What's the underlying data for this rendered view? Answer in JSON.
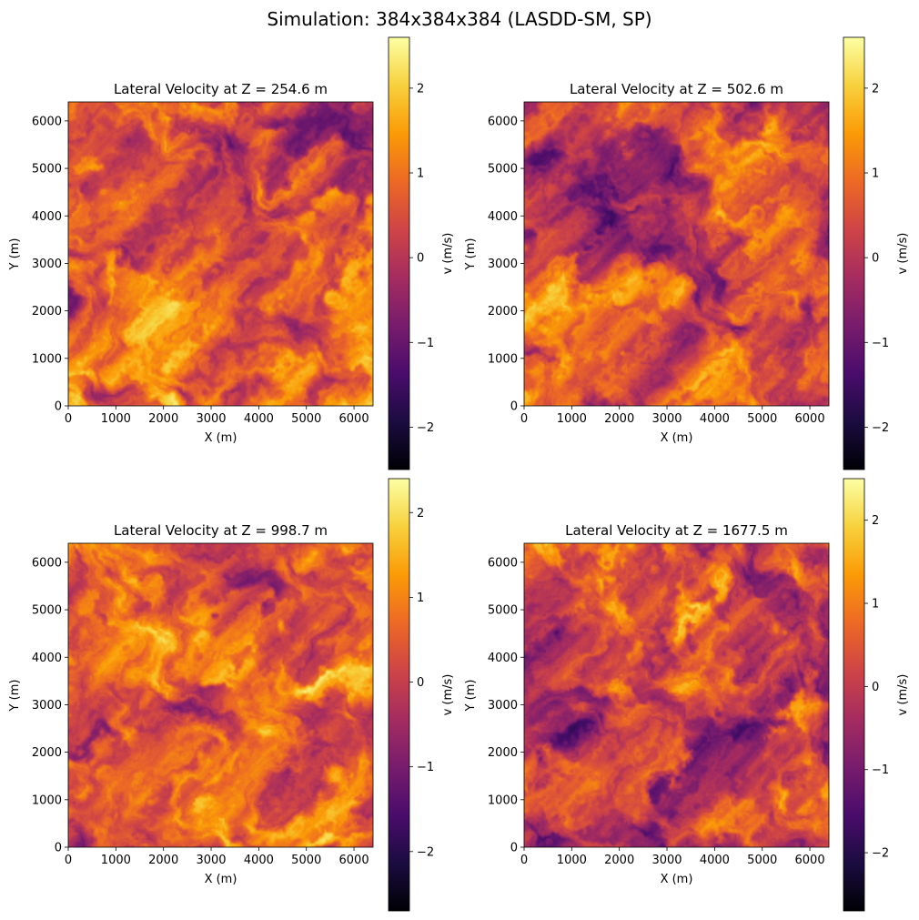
{
  "figure": {
    "suptitle": "Simulation: 384x384x384 (LASDD-SM, SP)"
  },
  "colors": {
    "colormap": "inferno",
    "stops": [
      "#000004",
      "#1b0c41",
      "#4a0c6b",
      "#781c6d",
      "#a52c60",
      "#cf4446",
      "#ed6925",
      "#fb9b06",
      "#f7d13d",
      "#fcffa4"
    ]
  },
  "chart_data": [
    {
      "type": "heatmap",
      "title": "Lateral Velocity at Z = 254.6 m",
      "xlabel": "X (m)",
      "ylabel": "Y (m)",
      "xlim": [
        0,
        6400
      ],
      "ylim": [
        0,
        6400
      ],
      "xticks": [
        0,
        1000,
        2000,
        3000,
        4000,
        5000,
        6000
      ],
      "yticks": [
        0,
        1000,
        2000,
        3000,
        4000,
        5000,
        6000
      ],
      "grid": false,
      "colorbar": {
        "label": "v (m/s)",
        "vmin": -2.5,
        "vmax": 2.6,
        "ticks": [
          -2,
          -1,
          0,
          1,
          2
        ]
      },
      "field": {
        "z_m": 254.6,
        "mean": 0.45,
        "std": 0.75
      }
    },
    {
      "type": "heatmap",
      "title": "Lateral Velocity at Z = 502.6 m",
      "xlabel": "X (m)",
      "ylabel": "Y (m)",
      "xlim": [
        0,
        6400
      ],
      "ylim": [
        0,
        6400
      ],
      "xticks": [
        0,
        1000,
        2000,
        3000,
        4000,
        5000,
        6000
      ],
      "yticks": [
        0,
        1000,
        2000,
        3000,
        4000,
        5000,
        6000
      ],
      "grid": false,
      "colorbar": {
        "label": "v (m/s)",
        "vmin": -2.5,
        "vmax": 2.6,
        "ticks": [
          -2,
          -1,
          0,
          1,
          2
        ]
      },
      "field": {
        "z_m": 502.6,
        "mean": 0.4,
        "std": 0.75
      }
    },
    {
      "type": "heatmap",
      "title": "Lateral Velocity at Z = 998.7 m",
      "xlabel": "X (m)",
      "ylabel": "Y (m)",
      "xlim": [
        0,
        6400
      ],
      "ylim": [
        0,
        6400
      ],
      "xticks": [
        0,
        1000,
        2000,
        3000,
        4000,
        5000,
        6000
      ],
      "yticks": [
        0,
        1000,
        2000,
        3000,
        4000,
        5000,
        6000
      ],
      "grid": false,
      "colorbar": {
        "label": "v (m/s)",
        "vmin": -2.7,
        "vmax": 2.4,
        "ticks": [
          -2,
          -1,
          0,
          1,
          2
        ]
      },
      "field": {
        "z_m": 998.7,
        "mean": 0.35,
        "std": 0.75
      }
    },
    {
      "type": "heatmap",
      "title": "Lateral Velocity at Z = 1677.5 m",
      "xlabel": "X (m)",
      "ylabel": "Y (m)",
      "xlim": [
        0,
        6400
      ],
      "ylim": [
        0,
        6400
      ],
      "xticks": [
        0,
        1000,
        2000,
        3000,
        4000,
        5000,
        6000
      ],
      "yticks": [
        0,
        1000,
        2000,
        3000,
        4000,
        5000,
        6000
      ],
      "grid": false,
      "colorbar": {
        "label": "v (m/s)",
        "vmin": -2.7,
        "vmax": 2.5,
        "ticks": [
          -2,
          -1,
          0,
          1,
          2
        ]
      },
      "field": {
        "z_m": 1677.5,
        "mean": 0.15,
        "std": 0.8
      }
    }
  ]
}
